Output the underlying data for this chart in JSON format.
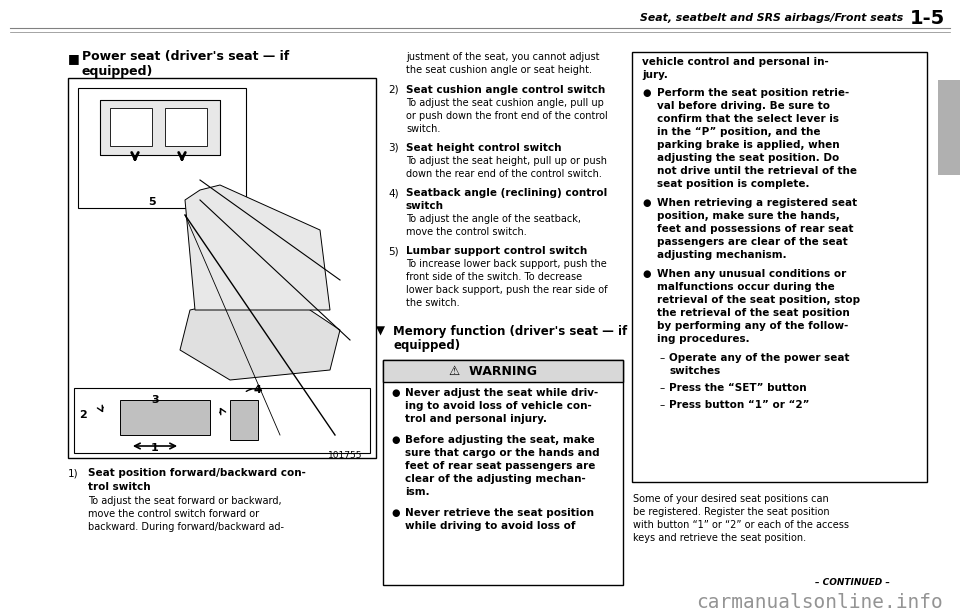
{
  "bg_color": "#ffffff",
  "page_width": 9.6,
  "page_height": 6.11,
  "header_text": "Seat, seatbelt and SRS airbags/Front seats",
  "header_page": "1-5",
  "watermark": "carmanualsonline.info",
  "continued": "– CONTINUED –",
  "image_label": "101755",
  "tab_color": "#b0b0b0"
}
